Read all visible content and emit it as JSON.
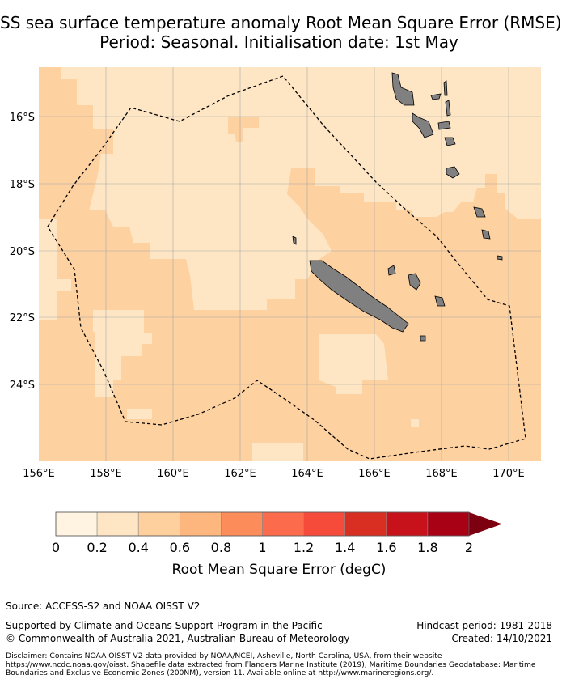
{
  "title": {
    "line1": "SS sea surface temperature anomaly Root Mean Square Error (RMSE)",
    "line2": "Period: Seasonal. Initialisation date: 1st May"
  },
  "map": {
    "lon_ticks": [
      "156°E",
      "158°E",
      "160°E",
      "162°E",
      "164°E",
      "166°E",
      "168°E",
      "170°E"
    ],
    "lat_ticks": [
      "16°S",
      "18°S",
      "20°S",
      "22°S",
      "24°S"
    ],
    "colors": {
      "ocean_low": "#fee6c4",
      "ocean_mid": "#fdd1a0",
      "land": "#808080",
      "boundary": "#000000"
    }
  },
  "colorbar": {
    "label": "Root Mean Square Error (degC)",
    "ticks": [
      "0",
      "0.2",
      "0.4",
      "0.6",
      "0.8",
      "1",
      "1.2",
      "1.4",
      "1.6",
      "1.8",
      "2"
    ],
    "colors": [
      "#fff3e1",
      "#fee6c4",
      "#fdd09e",
      "#fdb67d",
      "#fc8c59",
      "#fc6c4c",
      "#f64a3b",
      "#d92e22",
      "#c7111b",
      "#a80015",
      "#7d0011"
    ]
  },
  "footer": {
    "source": "Source: ACCESS-S2 and NOAA OISST V2",
    "supported": "Supported by Climate and Oceans Support Program in the Pacific",
    "copyright": "© Commonwealth of Australia 2021, Australian Bureau of Meteorology",
    "hindcast": "Hindcast period: 1981-2018",
    "created": "Created: 14/10/2021",
    "disclaimer": "Disclaimer: Contains NOAA OISST V2 data provided by NOAA/NCEI, Asheville, North Carolina, USA, from their website https://www.ncdc.noaa.gov/oisst. Shapefile data extracted from Flanders Marine Institute (2019), Maritime Boundaries Geodatabase: Maritime Boundaries and Exclusive Economic Zones (200NM), version 11. Available online at http://www.marineregions.org/."
  }
}
